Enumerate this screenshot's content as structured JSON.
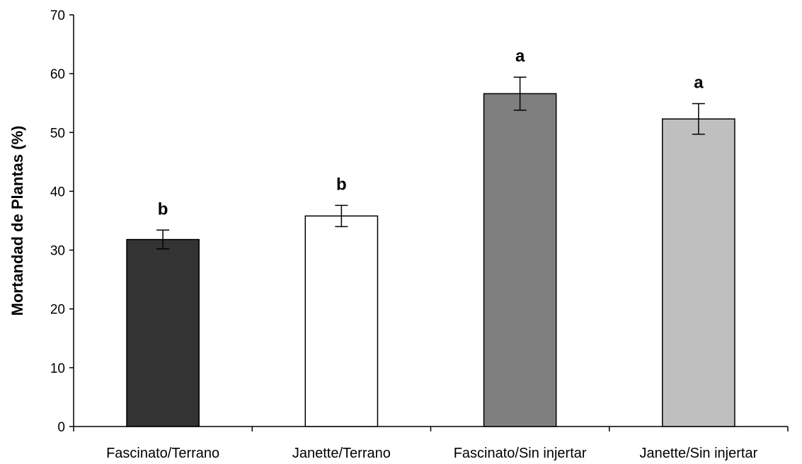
{
  "chart_data": {
    "type": "bar",
    "title": "",
    "xlabel": "",
    "ylabel": "Mortandad de Plantas (%)",
    "ylim": [
      0,
      70
    ],
    "yticks": [
      0,
      10,
      20,
      30,
      40,
      50,
      60,
      70
    ],
    "grid": false,
    "legend": "none",
    "categories": [
      "Fascinato/Terrano",
      "Janette/Terrano",
      "Fascinato/Sin injertar",
      "Janette/Sin injertar"
    ],
    "values": [
      31.8,
      35.8,
      56.6,
      52.3
    ],
    "errors": [
      1.6,
      1.8,
      2.8,
      2.6
    ],
    "significance_letters": [
      "b",
      "b",
      "a",
      "a"
    ],
    "colors": [
      "#333333",
      "#ffffff",
      "#7f7f7f",
      "#bfbfbf"
    ]
  }
}
